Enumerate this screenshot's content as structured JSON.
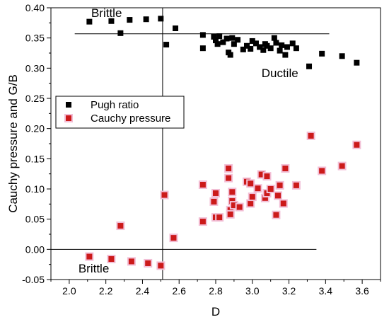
{
  "chart_data": {
    "type": "scatter",
    "xlabel": "D",
    "ylabel": "Cauchy pressure and G/B",
    "xlim": [
      1.9,
      3.7
    ],
    "ylim": [
      -0.05,
      0.4
    ],
    "xticks": [
      "2.0",
      "2.2",
      "2.4",
      "2.6",
      "2.8",
      "3.0",
      "3.2",
      "3.4",
      "3.6"
    ],
    "yticks": [
      "-0.05",
      "0.00",
      "0.05",
      "0.10",
      "0.15",
      "0.20",
      "0.25",
      "0.30",
      "0.35",
      "0.40"
    ],
    "grid": false,
    "legend_position": "middle-left",
    "reference_lines": {
      "vertical_x": 2.51,
      "pugh_threshold_y": 0.357,
      "cauchy_zero_y": 0.0
    },
    "annotations": [
      {
        "text": "Brittle",
        "x": 2.12,
        "y": 0.385
      },
      {
        "text": "Ductile",
        "x": 3.05,
        "y": 0.285
      },
      {
        "text": "Brittle",
        "x": 2.05,
        "y": -0.038
      }
    ],
    "series": [
      {
        "name": "Pugh ratio",
        "marker": "square",
        "color": "#000000",
        "points": [
          [
            2.11,
            0.377
          ],
          [
            2.23,
            0.378
          ],
          [
            2.28,
            0.358
          ],
          [
            2.33,
            0.38
          ],
          [
            2.42,
            0.381
          ],
          [
            2.5,
            0.382
          ],
          [
            2.53,
            0.339
          ],
          [
            2.58,
            0.366
          ],
          [
            2.73,
            0.355
          ],
          [
            2.73,
            0.333
          ],
          [
            2.79,
            0.352
          ],
          [
            2.8,
            0.346
          ],
          [
            2.81,
            0.34
          ],
          [
            2.82,
            0.353
          ],
          [
            2.84,
            0.343
          ],
          [
            2.86,
            0.349
          ],
          [
            2.87,
            0.326
          ],
          [
            2.88,
            0.322
          ],
          [
            2.89,
            0.35
          ],
          [
            2.9,
            0.34
          ],
          [
            2.92,
            0.347
          ],
          [
            2.95,
            0.331
          ],
          [
            2.97,
            0.337
          ],
          [
            2.99,
            0.332
          ],
          [
            3.0,
            0.345
          ],
          [
            3.02,
            0.341
          ],
          [
            3.04,
            0.335
          ],
          [
            3.06,
            0.33
          ],
          [
            3.07,
            0.34
          ],
          [
            3.08,
            0.337
          ],
          [
            3.1,
            0.333
          ],
          [
            3.12,
            0.35
          ],
          [
            3.13,
            0.342
          ],
          [
            3.15,
            0.329
          ],
          [
            3.16,
            0.338
          ],
          [
            3.18,
            0.322
          ],
          [
            3.19,
            0.335
          ],
          [
            3.22,
            0.341
          ],
          [
            3.24,
            0.333
          ],
          [
            3.31,
            0.303
          ],
          [
            3.38,
            0.324
          ],
          [
            3.49,
            0.32
          ],
          [
            3.57,
            0.309
          ]
        ]
      },
      {
        "name": "Cauchy pressure",
        "marker": "square",
        "color": "#cc1a1a",
        "points": [
          [
            2.11,
            -0.012
          ],
          [
            2.23,
            -0.016
          ],
          [
            2.28,
            0.039
          ],
          [
            2.34,
            -0.02
          ],
          [
            2.43,
            -0.023
          ],
          [
            2.5,
            -0.027
          ],
          [
            2.52,
            0.09
          ],
          [
            2.57,
            0.019
          ],
          [
            2.73,
            0.107
          ],
          [
            2.73,
            0.046
          ],
          [
            2.79,
            0.079
          ],
          [
            2.8,
            0.093
          ],
          [
            2.8,
            0.053
          ],
          [
            2.82,
            0.053
          ],
          [
            2.87,
            0.134
          ],
          [
            2.87,
            0.118
          ],
          [
            2.88,
            0.065
          ],
          [
            2.88,
            0.058
          ],
          [
            2.89,
            0.095
          ],
          [
            2.89,
            0.08
          ],
          [
            2.9,
            0.073
          ],
          [
            2.93,
            0.07
          ],
          [
            2.97,
            0.112
          ],
          [
            2.99,
            0.109
          ],
          [
            2.99,
            0.076
          ],
          [
            3.0,
            0.087
          ],
          [
            3.03,
            0.101
          ],
          [
            3.05,
            0.124
          ],
          [
            3.07,
            0.085
          ],
          [
            3.08,
            0.121
          ],
          [
            3.08,
            0.093
          ],
          [
            3.1,
            0.1
          ],
          [
            3.13,
            0.057
          ],
          [
            3.14,
            0.089
          ],
          [
            3.15,
            0.106
          ],
          [
            3.17,
            0.076
          ],
          [
            3.18,
            0.134
          ],
          [
            3.24,
            0.106
          ],
          [
            3.32,
            0.188
          ],
          [
            3.38,
            0.13
          ],
          [
            3.49,
            0.138
          ],
          [
            3.57,
            0.173
          ]
        ]
      }
    ]
  }
}
